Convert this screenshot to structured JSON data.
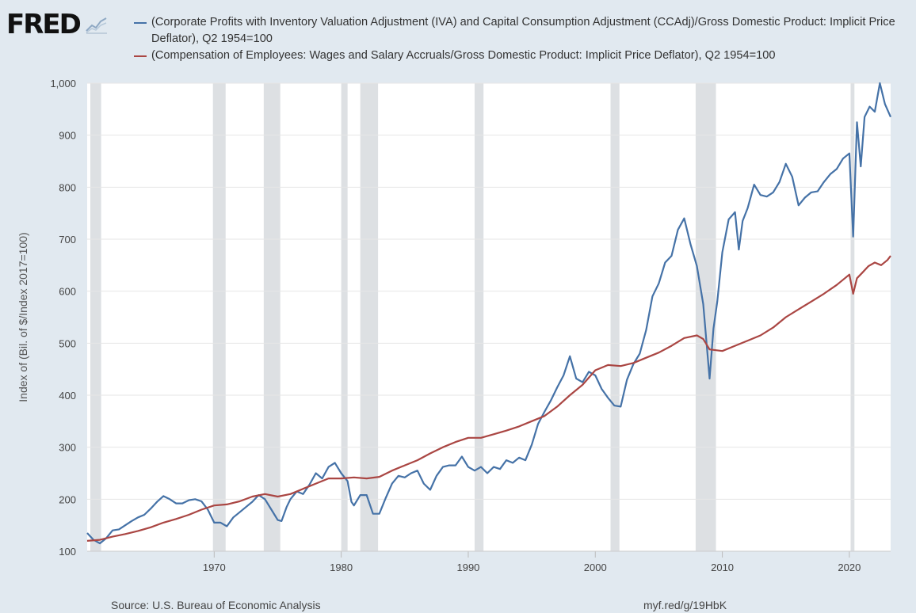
{
  "logo": {
    "text": "FRED",
    "icon": "line-chart-icon"
  },
  "colors": {
    "series1": "#4572a7",
    "series2": "#aa4643",
    "recession": "#dde0e3",
    "plot_bg": "#ffffff",
    "page_bg": "#e1e9f0"
  },
  "footer": {
    "source": "Source: U.S. Bureau of Economic Analysis",
    "url": "myf.red/g/19HbK"
  },
  "chart_data": {
    "type": "line",
    "ylabel": "Index of (Bil. of $/Index 2017=100)",
    "xlabel": "",
    "ylim": [
      100,
      1000
    ],
    "xlim": [
      1960.0,
      2023.25
    ],
    "yticks": [
      100,
      200,
      300,
      400,
      500,
      600,
      700,
      800,
      900,
      1000
    ],
    "ytick_labels": [
      "100",
      "200",
      "300",
      "400",
      "500",
      "600",
      "700",
      "800",
      "900",
      "1,000"
    ],
    "xticks": [
      1970,
      1980,
      1990,
      2000,
      2010,
      2020
    ],
    "xtick_labels": [
      "1970",
      "1980",
      "1990",
      "2000",
      "2010",
      "2020"
    ],
    "grid": "horizontal",
    "legend": "top",
    "recessions": [
      [
        1960.25,
        1961.1
      ],
      [
        1969.9,
        1970.9
      ],
      [
        1973.9,
        1975.2
      ],
      [
        1980.0,
        1980.5
      ],
      [
        1981.5,
        1982.9
      ],
      [
        1990.5,
        1991.2
      ],
      [
        2001.2,
        2001.9
      ],
      [
        2007.9,
        2009.5
      ],
      [
        2020.1,
        2020.4
      ]
    ],
    "series": [
      {
        "name": "(Corporate Profits with Inventory Valuation Adjustment (IVA) and Capital Consumption Adjustment (CCAdj)/Gross Domestic Product: Implicit Price Deflator), Q2 1954=100",
        "points": [
          [
            1960.0,
            135
          ],
          [
            1960.5,
            122
          ],
          [
            1961.0,
            115
          ],
          [
            1961.5,
            125
          ],
          [
            1962.0,
            140
          ],
          [
            1962.5,
            142
          ],
          [
            1963.0,
            150
          ],
          [
            1963.5,
            158
          ],
          [
            1964.0,
            165
          ],
          [
            1964.5,
            170
          ],
          [
            1965.0,
            182
          ],
          [
            1965.5,
            195
          ],
          [
            1966.0,
            206
          ],
          [
            1966.5,
            200
          ],
          [
            1967.0,
            192
          ],
          [
            1967.5,
            192
          ],
          [
            1968.0,
            198
          ],
          [
            1968.5,
            200
          ],
          [
            1969.0,
            196
          ],
          [
            1969.5,
            180
          ],
          [
            1970.0,
            155
          ],
          [
            1970.5,
            155
          ],
          [
            1971.0,
            148
          ],
          [
            1971.5,
            165
          ],
          [
            1972.0,
            175
          ],
          [
            1972.5,
            185
          ],
          [
            1973.0,
            195
          ],
          [
            1973.5,
            208
          ],
          [
            1974.0,
            200
          ],
          [
            1974.5,
            180
          ],
          [
            1975.0,
            160
          ],
          [
            1975.3,
            158
          ],
          [
            1975.7,
            185
          ],
          [
            1976.0,
            200
          ],
          [
            1976.5,
            215
          ],
          [
            1977.0,
            210
          ],
          [
            1977.5,
            228
          ],
          [
            1978.0,
            250
          ],
          [
            1978.5,
            240
          ],
          [
            1979.0,
            262
          ],
          [
            1979.5,
            270
          ],
          [
            1980.0,
            250
          ],
          [
            1980.5,
            235
          ],
          [
            1980.8,
            195
          ],
          [
            1981.0,
            188
          ],
          [
            1981.5,
            208
          ],
          [
            1982.0,
            208
          ],
          [
            1982.5,
            172
          ],
          [
            1983.0,
            172
          ],
          [
            1983.5,
            202
          ],
          [
            1984.0,
            230
          ],
          [
            1984.5,
            245
          ],
          [
            1985.0,
            242
          ],
          [
            1985.5,
            250
          ],
          [
            1986.0,
            255
          ],
          [
            1986.5,
            230
          ],
          [
            1987.0,
            218
          ],
          [
            1987.5,
            245
          ],
          [
            1988.0,
            262
          ],
          [
            1988.5,
            265
          ],
          [
            1989.0,
            265
          ],
          [
            1989.5,
            282
          ],
          [
            1990.0,
            262
          ],
          [
            1990.5,
            255
          ],
          [
            1991.0,
            262
          ],
          [
            1991.5,
            250
          ],
          [
            1992.0,
            262
          ],
          [
            1992.5,
            258
          ],
          [
            1993.0,
            275
          ],
          [
            1993.5,
            270
          ],
          [
            1994.0,
            280
          ],
          [
            1994.5,
            275
          ],
          [
            1995.0,
            305
          ],
          [
            1995.5,
            345
          ],
          [
            1996.0,
            368
          ],
          [
            1996.5,
            390
          ],
          [
            1997.0,
            415
          ],
          [
            1997.5,
            438
          ],
          [
            1998.0,
            475
          ],
          [
            1998.5,
            432
          ],
          [
            1999.0,
            425
          ],
          [
            1999.5,
            445
          ],
          [
            2000.0,
            438
          ],
          [
            2000.5,
            412
          ],
          [
            2001.0,
            395
          ],
          [
            2001.5,
            380
          ],
          [
            2002.0,
            378
          ],
          [
            2002.5,
            430
          ],
          [
            2003.0,
            460
          ],
          [
            2003.5,
            480
          ],
          [
            2004.0,
            525
          ],
          [
            2004.5,
            590
          ],
          [
            2005.0,
            615
          ],
          [
            2005.5,
            655
          ],
          [
            2006.0,
            668
          ],
          [
            2006.5,
            718
          ],
          [
            2007.0,
            740
          ],
          [
            2007.5,
            690
          ],
          [
            2008.0,
            648
          ],
          [
            2008.5,
            575
          ],
          [
            2009.0,
            432
          ],
          [
            2009.3,
            528
          ],
          [
            2009.6,
            580
          ],
          [
            2010.0,
            675
          ],
          [
            2010.5,
            738
          ],
          [
            2011.0,
            752
          ],
          [
            2011.3,
            680
          ],
          [
            2011.6,
            735
          ],
          [
            2012.0,
            760
          ],
          [
            2012.5,
            805
          ],
          [
            2013.0,
            785
          ],
          [
            2013.5,
            782
          ],
          [
            2014.0,
            790
          ],
          [
            2014.5,
            810
          ],
          [
            2015.0,
            845
          ],
          [
            2015.5,
            820
          ],
          [
            2016.0,
            765
          ],
          [
            2016.5,
            780
          ],
          [
            2017.0,
            790
          ],
          [
            2017.5,
            792
          ],
          [
            2018.0,
            810
          ],
          [
            2018.5,
            825
          ],
          [
            2019.0,
            835
          ],
          [
            2019.5,
            855
          ],
          [
            2020.0,
            865
          ],
          [
            2020.3,
            705
          ],
          [
            2020.6,
            925
          ],
          [
            2020.9,
            840
          ],
          [
            2021.2,
            935
          ],
          [
            2021.6,
            955
          ],
          [
            2022.0,
            945
          ],
          [
            2022.4,
            1000
          ],
          [
            2022.8,
            960
          ],
          [
            2023.25,
            935
          ]
        ]
      },
      {
        "name": "(Compensation of Employees: Wages and Salary Accruals/Gross Domestic Product: Implicit Price Deflator), Q2 1954=100",
        "points": [
          [
            1960.0,
            120
          ],
          [
            1961.0,
            122
          ],
          [
            1962.0,
            128
          ],
          [
            1963.0,
            133
          ],
          [
            1964.0,
            139
          ],
          [
            1965.0,
            146
          ],
          [
            1966.0,
            155
          ],
          [
            1967.0,
            162
          ],
          [
            1968.0,
            170
          ],
          [
            1969.0,
            180
          ],
          [
            1970.0,
            188
          ],
          [
            1971.0,
            190
          ],
          [
            1972.0,
            196
          ],
          [
            1973.0,
            205
          ],
          [
            1974.0,
            210
          ],
          [
            1975.0,
            205
          ],
          [
            1976.0,
            210
          ],
          [
            1977.0,
            220
          ],
          [
            1978.0,
            230
          ],
          [
            1979.0,
            240
          ],
          [
            1980.0,
            240
          ],
          [
            1981.0,
            242
          ],
          [
            1982.0,
            240
          ],
          [
            1983.0,
            243
          ],
          [
            1984.0,
            255
          ],
          [
            1985.0,
            265
          ],
          [
            1986.0,
            275
          ],
          [
            1987.0,
            288
          ],
          [
            1988.0,
            300
          ],
          [
            1989.0,
            310
          ],
          [
            1990.0,
            318
          ],
          [
            1991.0,
            318
          ],
          [
            1992.0,
            325
          ],
          [
            1993.0,
            332
          ],
          [
            1994.0,
            340
          ],
          [
            1995.0,
            350
          ],
          [
            1996.0,
            360
          ],
          [
            1997.0,
            378
          ],
          [
            1998.0,
            400
          ],
          [
            1999.0,
            420
          ],
          [
            2000.0,
            448
          ],
          [
            2001.0,
            458
          ],
          [
            2002.0,
            456
          ],
          [
            2003.0,
            462
          ],
          [
            2004.0,
            472
          ],
          [
            2005.0,
            482
          ],
          [
            2006.0,
            495
          ],
          [
            2007.0,
            510
          ],
          [
            2008.0,
            515
          ],
          [
            2008.5,
            508
          ],
          [
            2009.0,
            488
          ],
          [
            2010.0,
            485
          ],
          [
            2011.0,
            495
          ],
          [
            2012.0,
            505
          ],
          [
            2013.0,
            515
          ],
          [
            2014.0,
            530
          ],
          [
            2015.0,
            550
          ],
          [
            2016.0,
            565
          ],
          [
            2017.0,
            580
          ],
          [
            2018.0,
            595
          ],
          [
            2019.0,
            612
          ],
          [
            2020.0,
            632
          ],
          [
            2020.3,
            595
          ],
          [
            2020.6,
            625
          ],
          [
            2021.0,
            635
          ],
          [
            2021.5,
            648
          ],
          [
            2022.0,
            655
          ],
          [
            2022.5,
            650
          ],
          [
            2023.0,
            660
          ],
          [
            2023.25,
            668
          ]
        ]
      }
    ]
  }
}
